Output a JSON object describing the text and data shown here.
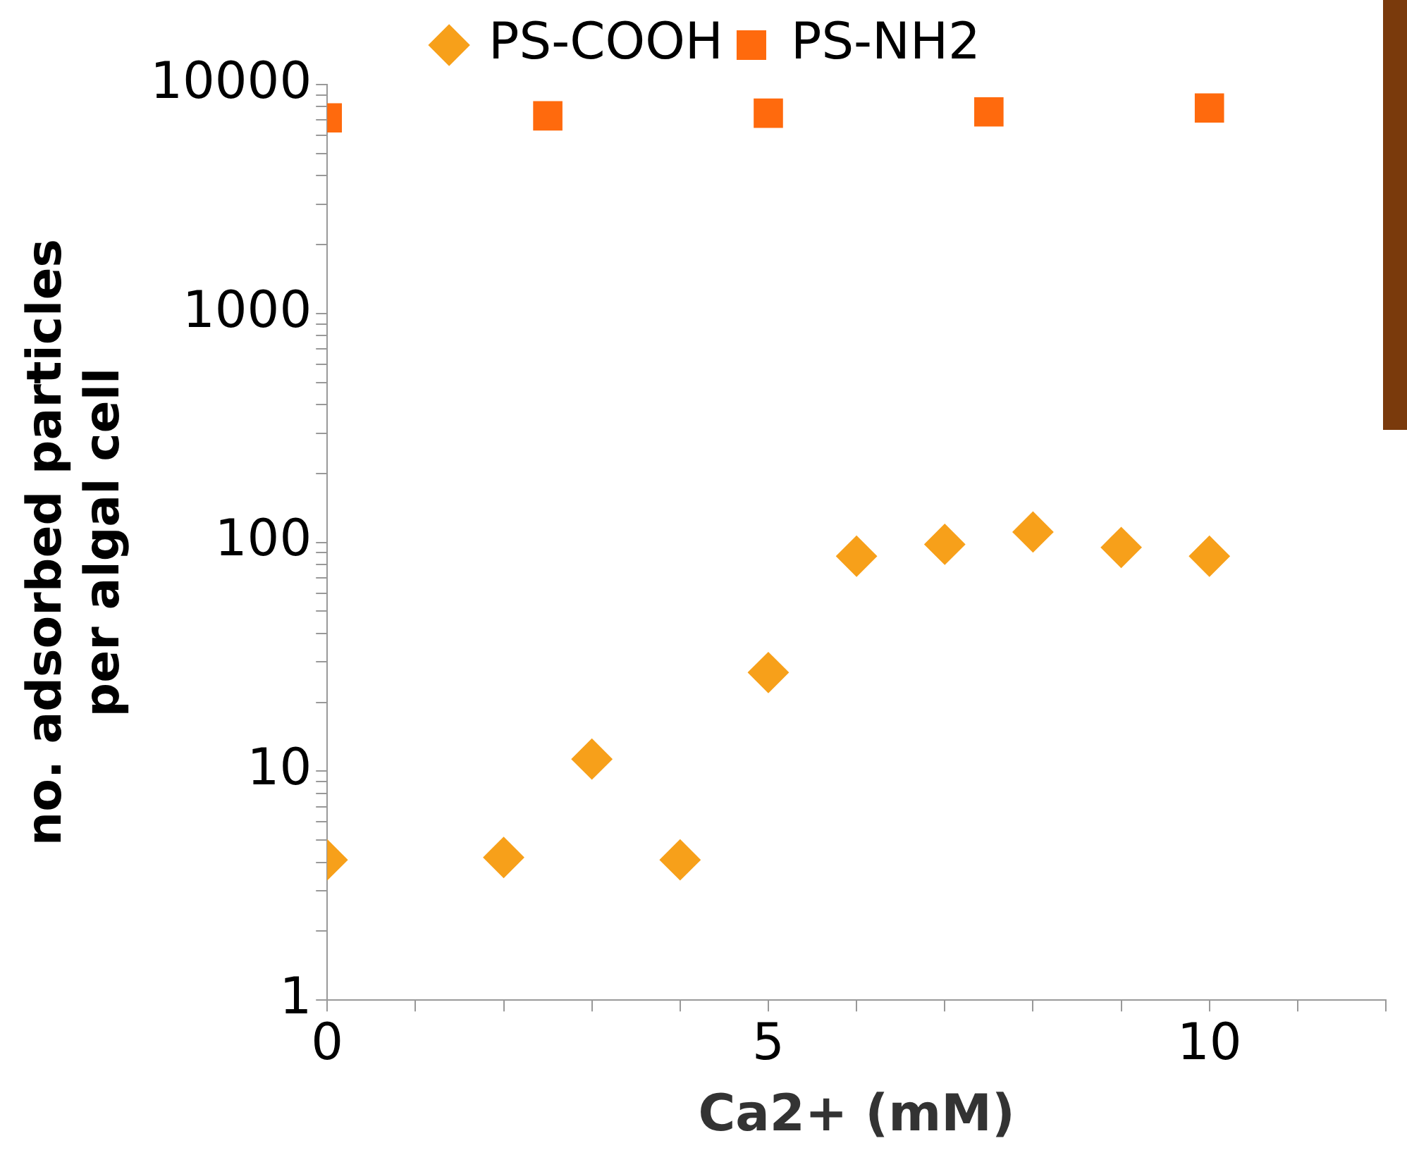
{
  "chart_data": {
    "type": "scatter",
    "xlabel": "Ca2+ (mM)",
    "ylabel": "no. adsorbed particles\nper algal cell",
    "log": "y",
    "legend": "top",
    "grid": false,
    "xlim": [
      0,
      12
    ],
    "xticks": [
      0,
      {
        "value": 1,
        "label": null
      },
      {
        "value": 2,
        "label": null
      },
      {
        "value": 3,
        "label": null
      },
      {
        "value": 4,
        "label": null
      },
      5,
      {
        "value": 6,
        "label": null
      },
      {
        "value": 7,
        "label": null
      },
      {
        "value": 8,
        "label": null
      },
      {
        "value": 9,
        "label": null
      },
      10,
      {
        "value": 11,
        "label": null
      },
      {
        "value": 12,
        "label": null
      }
    ],
    "ylim": [
      1,
      10000
    ],
    "yticks": [
      1,
      {
        "value": 2,
        "label": null
      },
      {
        "value": 3,
        "label": null
      },
      {
        "value": 4,
        "label": null
      },
      {
        "value": 5,
        "label": null
      },
      {
        "value": 6,
        "label": null
      },
      {
        "value": 7,
        "label": null
      },
      {
        "value": 8,
        "label": null
      },
      {
        "value": 9,
        "label": null
      },
      10,
      {
        "value": 20,
        "label": null
      },
      {
        "value": 30,
        "label": null
      },
      {
        "value": 40,
        "label": null
      },
      {
        "value": 50,
        "label": null
      },
      {
        "value": 60,
        "label": null
      },
      {
        "value": 70,
        "label": null
      },
      {
        "value": 80,
        "label": null
      },
      {
        "value": 90,
        "label": null
      },
      100,
      {
        "value": 200,
        "label": null
      },
      {
        "value": 300,
        "label": null
      },
      {
        "value": 400,
        "label": null
      },
      {
        "value": 500,
        "label": null
      },
      {
        "value": 600,
        "label": null
      },
      {
        "value": 700,
        "label": null
      },
      {
        "value": 800,
        "label": null
      },
      {
        "value": 900,
        "label": null
      },
      1000,
      {
        "value": 2000,
        "label": null
      },
      {
        "value": 3000,
        "label": null
      },
      {
        "value": 4000,
        "label": null
      },
      {
        "value": 5000,
        "label": null
      },
      {
        "value": 6000,
        "label": null
      },
      {
        "value": 7000,
        "label": null
      },
      {
        "value": 8000,
        "label": null
      },
      {
        "value": 9000,
        "label": null
      },
      10000
    ],
    "series": [
      {
        "name": "PS-COOH",
        "color": "#f7a01a",
        "marker": "diamond",
        "x": [
          0,
          2,
          3,
          4,
          5,
          6,
          7,
          8,
          9,
          10
        ],
        "values": [
          4.1,
          4.2,
          11.3,
          4.1,
          27,
          87,
          98,
          111,
          95,
          87
        ]
      },
      {
        "name": "PS-NH2",
        "color": "#ff6a0d",
        "marker": "square",
        "x": [
          0,
          2.5,
          5,
          7.5,
          10
        ],
        "values": [
          7150,
          7300,
          7500,
          7600,
          7900
        ]
      }
    ]
  }
}
